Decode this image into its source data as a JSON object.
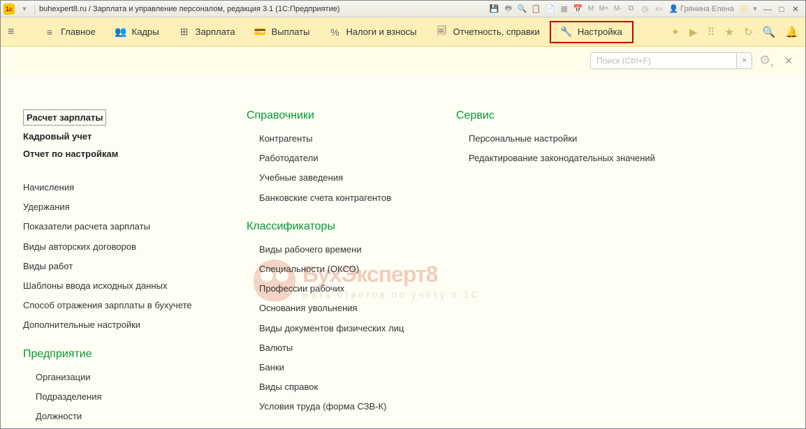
{
  "titlebar": {
    "title": "buhexpert8.ru / Зарплата и управление персоналом, редакция 3.1  (1С:Предприятие)",
    "user": "Грянина Елена",
    "m_icons": [
      "M",
      "M+",
      "M-"
    ]
  },
  "navbar": {
    "items": [
      {
        "icon": "≡",
        "label": "Главное"
      },
      {
        "icon": "👥",
        "label": "Кадры"
      },
      {
        "icon": "⊞",
        "label": "Зарплата"
      },
      {
        "icon": "💳",
        "label": "Выплаты"
      },
      {
        "icon": "%",
        "label": "Налоги и взносы"
      },
      {
        "icon": "🗐",
        "label": "Отчетность, справки"
      },
      {
        "icon": "🔧",
        "label": "Настройка"
      }
    ],
    "active_index": 6
  },
  "subbar": {
    "search_placeholder": "Поиск (Ctrl+F)"
  },
  "columns": {
    "col1_top": [
      "Расчет зарплаты",
      "Кадровый учет",
      "Отчет по настройкам"
    ],
    "col1_mid": [
      "Начисления",
      "Удержания",
      "Показатели расчета зарплаты",
      "Виды авторских договоров",
      "Виды работ",
      "Шаблоны ввода исходных данных",
      "Способ отражения зарплаты в бухучете",
      "Дополнительные настройки"
    ],
    "col1_section": "Предприятие",
    "col1_bottom": [
      "Организации",
      "Подразделения",
      "Должности"
    ],
    "col2_section1": "Справочники",
    "col2_items1": [
      "Контрагенты",
      "Работодатели",
      "Учебные заведения",
      "Банковские счета контрагентов"
    ],
    "col2_section2": "Классификаторы",
    "col2_items2": [
      "Виды рабочего времени",
      "Специальности (ОКСО)",
      "Профессии рабочих",
      "Основания увольнения",
      "Виды документов физических лиц",
      "Валюты",
      "Банки",
      "Виды справок",
      "Условия труда (форма СЗВ-К)"
    ],
    "col3_section": "Сервис",
    "col3_items": [
      "Персональные настройки",
      "Редактирование законодательных значений"
    ]
  },
  "watermark": {
    "title_a": "Бух",
    "title_b": "Эксперт",
    "title_c": "8",
    "subtitle": "База ответов по учёту в 1С"
  },
  "colors": {
    "accent_green": "#009933",
    "highlight_red": "#c00",
    "nav_bg": "#fdf0b8",
    "content_bg": "#fffef5"
  }
}
